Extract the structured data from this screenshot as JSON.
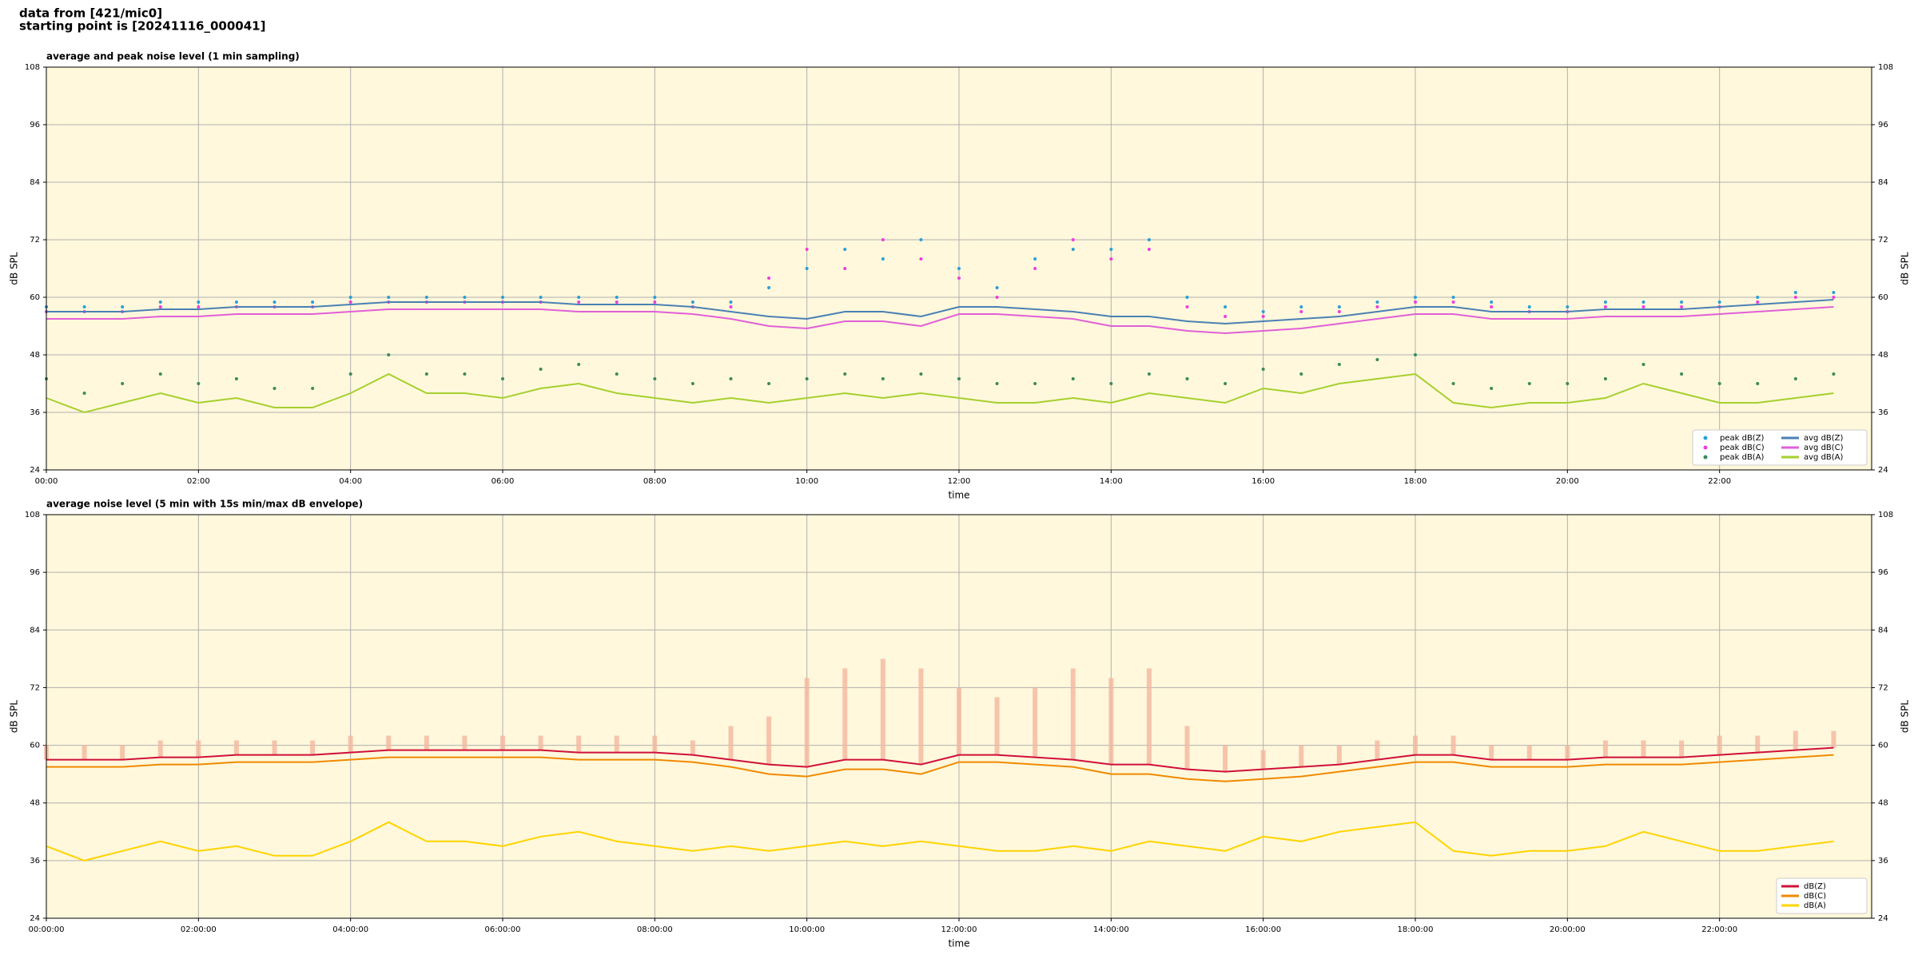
{
  "header": {
    "lines": [
      "data from [421/mic0]",
      "starting point is [20241116_000041]"
    ]
  },
  "chart_data": [
    {
      "type": "line",
      "title": "average and peak noise level (1 min sampling)",
      "xlabel": "time",
      "ylabel": "dB SPL",
      "x": [
        0,
        30,
        60,
        90,
        120,
        150,
        180,
        210,
        240,
        270,
        300,
        330,
        360,
        390,
        420,
        450,
        480,
        510,
        540,
        570,
        600,
        630,
        660,
        690,
        720,
        750,
        780,
        810,
        840,
        870,
        900,
        930,
        960,
        990,
        1020,
        1050,
        1080,
        1110,
        1140,
        1170,
        1200,
        1230,
        1260,
        1290,
        1320,
        1350,
        1380,
        1410
      ],
      "xlim": [
        0,
        1440
      ],
      "xticks": [
        {
          "value": 0,
          "label": "00:00"
        },
        {
          "value": 120,
          "label": "02:00"
        },
        {
          "value": 240,
          "label": "04:00"
        },
        {
          "value": 360,
          "label": "06:00"
        },
        {
          "value": 480,
          "label": "08:00"
        },
        {
          "value": 600,
          "label": "10:00"
        },
        {
          "value": 720,
          "label": "12:00"
        },
        {
          "value": 840,
          "label": "14:00"
        },
        {
          "value": 960,
          "label": "16:00"
        },
        {
          "value": 1080,
          "label": "18:00"
        },
        {
          "value": 1200,
          "label": "20:00"
        },
        {
          "value": 1320,
          "label": "22:00"
        }
      ],
      "ylim": [
        24,
        108
      ],
      "yticks": [
        24,
        36,
        48,
        60,
        72,
        84,
        96,
        108
      ],
      "grid": true,
      "legend": "lower right",
      "series": [
        {
          "name": "peak dB(Z)",
          "color": "#2a9fd6",
          "mode": "markers",
          "values": [
            58,
            58,
            58,
            59,
            59,
            59,
            59,
            59,
            60,
            60,
            60,
            60,
            60,
            60,
            60,
            60,
            60,
            59,
            59,
            62,
            66,
            70,
            68,
            72,
            66,
            62,
            68,
            70,
            70,
            72,
            60,
            58,
            57,
            58,
            58,
            59,
            60,
            60,
            59,
            58,
            58,
            59,
            59,
            59,
            59,
            60,
            61,
            61
          ]
        },
        {
          "name": "peak dB(C)",
          "color": "#ee3ddf",
          "mode": "markers",
          "values": [
            57,
            57,
            57,
            58,
            58,
            58,
            58,
            58,
            59,
            59,
            59,
            59,
            59,
            59,
            59,
            59,
            59,
            58,
            58,
            64,
            70,
            66,
            72,
            68,
            64,
            60,
            66,
            72,
            68,
            70,
            58,
            56,
            56,
            57,
            57,
            58,
            59,
            59,
            58,
            57,
            57,
            58,
            58,
            58,
            58,
            59,
            60,
            60
          ]
        },
        {
          "name": "peak dB(A)",
          "color": "#3b8a5c",
          "mode": "markers",
          "values": [
            43,
            40,
            42,
            44,
            42,
            43,
            41,
            41,
            44,
            48,
            44,
            44,
            43,
            45,
            46,
            44,
            43,
            42,
            43,
            42,
            43,
            44,
            43,
            44,
            43,
            42,
            42,
            43,
            42,
            44,
            43,
            42,
            45,
            44,
            46,
            47,
            48,
            42,
            41,
            42,
            42,
            43,
            46,
            44,
            42,
            42,
            43,
            44
          ]
        },
        {
          "name": "avg dB(Z)",
          "color": "#4a80b4",
          "mode": "lines",
          "values": [
            57,
            57,
            57,
            57.5,
            57.5,
            58,
            58,
            58,
            58.5,
            59,
            59,
            59,
            59,
            59,
            58.5,
            58.5,
            58.5,
            58,
            57,
            56,
            55.5,
            57,
            57,
            56,
            58,
            58,
            57.5,
            57,
            56,
            56,
            55,
            54.5,
            55,
            55.5,
            56,
            57,
            58,
            58,
            57,
            57,
            57,
            57.5,
            57.5,
            57.5,
            58,
            58.5,
            59,
            59.5
          ]
        },
        {
          "name": "avg dB(C)",
          "color": "#e060d8",
          "mode": "lines",
          "values": [
            55.5,
            55.5,
            55.5,
            56,
            56,
            56.5,
            56.5,
            56.5,
            57,
            57.5,
            57.5,
            57.5,
            57.5,
            57.5,
            57,
            57,
            57,
            56.5,
            55.5,
            54,
            53.5,
            55,
            55,
            54,
            56.5,
            56.5,
            56,
            55.5,
            54,
            54,
            53,
            52.5,
            53,
            53.5,
            54.5,
            55.5,
            56.5,
            56.5,
            55.5,
            55.5,
            55.5,
            56,
            56,
            56,
            56.5,
            57,
            57.5,
            58
          ]
        },
        {
          "name": "avg dB(A)",
          "color": "#a5d02e",
          "mode": "lines",
          "values": [
            39,
            36,
            38,
            40,
            38,
            39,
            37,
            37,
            40,
            44,
            40,
            40,
            39,
            41,
            42,
            40,
            39,
            38,
            39,
            38,
            39,
            40,
            39,
            40,
            39,
            38,
            38,
            39,
            38,
            40,
            39,
            38,
            41,
            40,
            42,
            43,
            44,
            38,
            37,
            38,
            38,
            39,
            42,
            40,
            38,
            38,
            39,
            40
          ]
        }
      ]
    },
    {
      "type": "line",
      "title": "average noise level (5 min with 15s min/max dB envelope)",
      "xlabel": "time",
      "ylabel": "dB SPL",
      "x": [
        0,
        30,
        60,
        90,
        120,
        150,
        180,
        210,
        240,
        270,
        300,
        330,
        360,
        390,
        420,
        450,
        480,
        510,
        540,
        570,
        600,
        630,
        660,
        690,
        720,
        750,
        780,
        810,
        840,
        870,
        900,
        930,
        960,
        990,
        1020,
        1050,
        1080,
        1110,
        1140,
        1170,
        1200,
        1230,
        1260,
        1290,
        1320,
        1350,
        1380,
        1410
      ],
      "xlim": [
        0,
        1440
      ],
      "xticks": [
        {
          "value": 0,
          "label": "00:00:00"
        },
        {
          "value": 120,
          "label": "02:00:00"
        },
        {
          "value": 240,
          "label": "04:00:00"
        },
        {
          "value": 360,
          "label": "06:00:00"
        },
        {
          "value": 480,
          "label": "08:00:00"
        },
        {
          "value": 600,
          "label": "10:00:00"
        },
        {
          "value": 720,
          "label": "12:00:00"
        },
        {
          "value": 840,
          "label": "14:00:00"
        },
        {
          "value": 960,
          "label": "16:00:00"
        },
        {
          "value": 1080,
          "label": "18:00:00"
        },
        {
          "value": 1200,
          "label": "20:00:00"
        },
        {
          "value": 1320,
          "label": "22:00:00"
        }
      ],
      "ylim": [
        24,
        108
      ],
      "yticks": [
        24,
        36,
        48,
        60,
        72,
        84,
        96,
        108
      ],
      "grid": true,
      "legend": "lower right",
      "envelope": {
        "color": "#f4b8a0",
        "values": [
          60,
          60,
          60,
          61,
          61,
          61,
          61,
          61,
          62,
          62,
          62,
          62,
          62,
          62,
          62,
          62,
          62,
          61,
          64,
          66,
          74,
          76,
          78,
          76,
          72,
          70,
          72,
          76,
          74,
          76,
          64,
          60,
          59,
          60,
          60,
          61,
          62,
          62,
          60,
          60,
          60,
          61,
          61,
          61,
          62,
          62,
          63,
          63
        ]
      },
      "series": [
        {
          "name": "dB(Z)",
          "color": "#d0103a",
          "mode": "lines",
          "values": [
            57,
            57,
            57,
            57.5,
            57.5,
            58,
            58,
            58,
            58.5,
            59,
            59,
            59,
            59,
            59,
            58.5,
            58.5,
            58.5,
            58,
            57,
            56,
            55.5,
            57,
            57,
            56,
            58,
            58,
            57.5,
            57,
            56,
            56,
            55,
            54.5,
            55,
            55.5,
            56,
            57,
            58,
            58,
            57,
            57,
            57,
            57.5,
            57.5,
            57.5,
            58,
            58.5,
            59,
            59.5
          ]
        },
        {
          "name": "dB(C)",
          "color": "#f08a00",
          "mode": "lines",
          "values": [
            55.5,
            55.5,
            55.5,
            56,
            56,
            56.5,
            56.5,
            56.5,
            57,
            57.5,
            57.5,
            57.5,
            57.5,
            57.5,
            57,
            57,
            57,
            56.5,
            55.5,
            54,
            53.5,
            55,
            55,
            54,
            56.5,
            56.5,
            56,
            55.5,
            54,
            54,
            53,
            52.5,
            53,
            53.5,
            54.5,
            55.5,
            56.5,
            56.5,
            55.5,
            55.5,
            55.5,
            56,
            56,
            56,
            56.5,
            57,
            57.5,
            58
          ]
        },
        {
          "name": "dB(A)",
          "color": "#ffd400",
          "mode": "lines",
          "values": [
            39,
            36,
            38,
            40,
            38,
            39,
            37,
            37,
            40,
            44,
            40,
            40,
            39,
            41,
            42,
            40,
            39,
            38,
            39,
            38,
            39,
            40,
            39,
            40,
            39,
            38,
            38,
            39,
            38,
            40,
            39,
            38,
            41,
            40,
            42,
            43,
            44,
            38,
            37,
            38,
            38,
            39,
            42,
            40,
            38,
            38,
            39,
            40
          ]
        }
      ]
    }
  ]
}
